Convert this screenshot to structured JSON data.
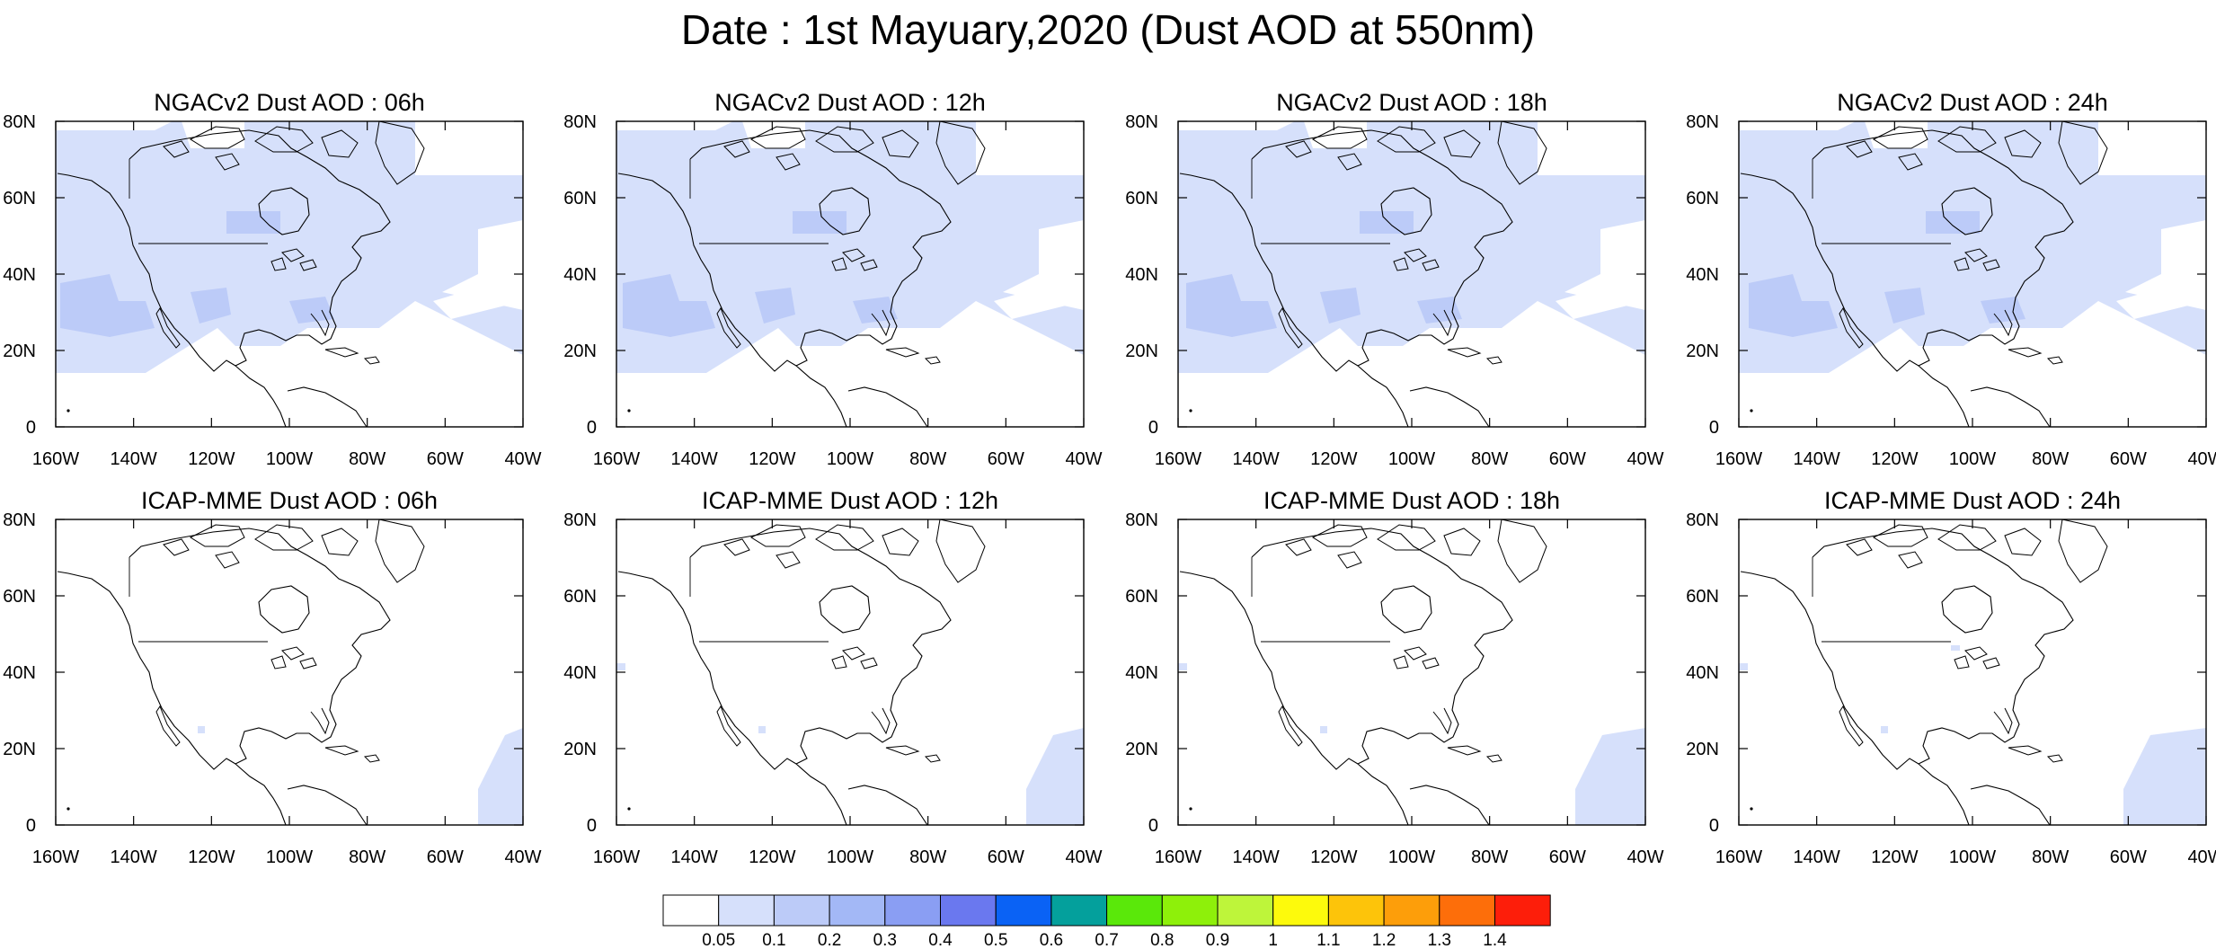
{
  "title": "Date : 1st Mayuary,2020 (Dust AOD at 550nm)",
  "x_tick_labels": [
    "160W",
    "140W",
    "120W",
    "100W",
    "80W",
    "60W",
    "40W"
  ],
  "y_tick_labels": [
    "0",
    "20N",
    "40N",
    "60N",
    "80N"
  ],
  "panels": [
    {
      "title": "NGACv2 Dust AOD : 06h",
      "model": "NGACv2",
      "hour": "06h",
      "dust_level": "broad"
    },
    {
      "title": "NGACv2 Dust AOD : 12h",
      "model": "NGACv2",
      "hour": "12h",
      "dust_level": "broad"
    },
    {
      "title": "NGACv2 Dust AOD : 18h",
      "model": "NGACv2",
      "hour": "18h",
      "dust_level": "broad"
    },
    {
      "title": "NGACv2 Dust AOD : 24h",
      "model": "NGACv2",
      "hour": "24h",
      "dust_level": "broad"
    },
    {
      "title": "ICAP-MME Dust AOD : 06h",
      "model": "ICAP-MME",
      "hour": "06h",
      "dust_level": "sparse"
    },
    {
      "title": "ICAP-MME Dust AOD : 12h",
      "model": "ICAP-MME",
      "hour": "12h",
      "dust_level": "sparse"
    },
    {
      "title": "ICAP-MME Dust AOD : 18h",
      "model": "ICAP-MME",
      "hour": "18h",
      "dust_level": "sparse"
    },
    {
      "title": "ICAP-MME Dust AOD : 24h",
      "model": "ICAP-MME",
      "hour": "24h",
      "dust_level": "sparse"
    }
  ],
  "colorbar": {
    "labels": [
      "0.05",
      "0.1",
      "0.2",
      "0.3",
      "0.4",
      "0.5",
      "0.6",
      "0.7",
      "0.8",
      "0.9",
      "1",
      "1.1",
      "1.2",
      "1.3",
      "1.4"
    ],
    "colors": [
      "#ffffff",
      "#d6e0fb",
      "#bccbf8",
      "#a3b8f6",
      "#8a9ef3",
      "#6a78ef",
      "#0a62f5",
      "#04a09c",
      "#5ae80a",
      "#8ef00a",
      "#bef53a",
      "#fdfa0c",
      "#fdc40a",
      "#fd9e0a",
      "#fd6e0a",
      "#fd1e0a"
    ]
  },
  "dust_colors": {
    "level1": "#d6e0fb",
    "level2": "#bccbf8"
  }
}
